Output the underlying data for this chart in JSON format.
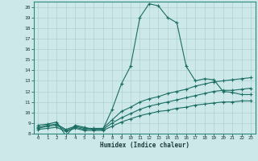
{
  "xlabel": "Humidex (Indice chaleur)",
  "bg_color": "#cde8e8",
  "grid_color": "#b0d0d0",
  "line_color": "#1a6e64",
  "xlim": [
    -0.5,
    23.5
  ],
  "ylim": [
    8,
    20.5
  ],
  "xticks": [
    0,
    1,
    2,
    3,
    4,
    5,
    6,
    7,
    8,
    9,
    10,
    11,
    12,
    13,
    14,
    15,
    16,
    17,
    18,
    19,
    20,
    21,
    22,
    23
  ],
  "yticks": [
    8,
    9,
    10,
    11,
    12,
    13,
    14,
    15,
    16,
    17,
    18,
    19,
    20
  ],
  "line1_x": [
    0,
    1,
    2,
    3,
    4,
    5,
    6,
    7,
    8,
    9,
    10,
    11,
    12,
    13,
    14,
    15,
    16,
    17,
    18,
    19,
    20,
    21,
    22,
    23
  ],
  "line1_y": [
    8.8,
    8.9,
    9.1,
    7.8,
    8.8,
    8.6,
    8.4,
    8.4,
    10.3,
    12.7,
    14.4,
    19.0,
    20.3,
    20.1,
    19.0,
    18.5,
    14.4,
    13.0,
    13.2,
    13.1,
    12.0,
    11.9,
    11.7,
    11.7
  ],
  "line2_x": [
    0,
    1,
    2,
    3,
    4,
    5,
    6,
    7,
    8,
    9,
    10,
    11,
    12,
    13,
    14,
    15,
    16,
    17,
    18,
    19,
    20,
    21,
    22,
    23
  ],
  "line2_y": [
    8.6,
    8.8,
    8.9,
    8.4,
    8.7,
    8.5,
    8.5,
    8.5,
    9.3,
    10.1,
    10.5,
    11.0,
    11.3,
    11.5,
    11.8,
    12.0,
    12.2,
    12.5,
    12.7,
    12.9,
    13.0,
    13.1,
    13.2,
    13.3
  ],
  "line3_x": [
    0,
    1,
    2,
    3,
    4,
    5,
    6,
    7,
    8,
    9,
    10,
    11,
    12,
    13,
    14,
    15,
    16,
    17,
    18,
    19,
    20,
    21,
    22,
    23
  ],
  "line3_y": [
    8.5,
    8.7,
    8.8,
    8.3,
    8.6,
    8.4,
    8.4,
    8.4,
    9.0,
    9.5,
    9.9,
    10.3,
    10.6,
    10.8,
    11.0,
    11.2,
    11.4,
    11.6,
    11.8,
    12.0,
    12.1,
    12.1,
    12.2,
    12.3
  ],
  "line4_x": [
    0,
    1,
    2,
    3,
    4,
    5,
    6,
    7,
    8,
    9,
    10,
    11,
    12,
    13,
    14,
    15,
    16,
    17,
    18,
    19,
    20,
    21,
    22,
    23
  ],
  "line4_y": [
    8.4,
    8.5,
    8.6,
    8.2,
    8.5,
    8.3,
    8.3,
    8.3,
    8.7,
    9.1,
    9.4,
    9.7,
    9.9,
    10.1,
    10.2,
    10.4,
    10.5,
    10.7,
    10.8,
    10.9,
    11.0,
    11.0,
    11.1,
    11.1
  ]
}
